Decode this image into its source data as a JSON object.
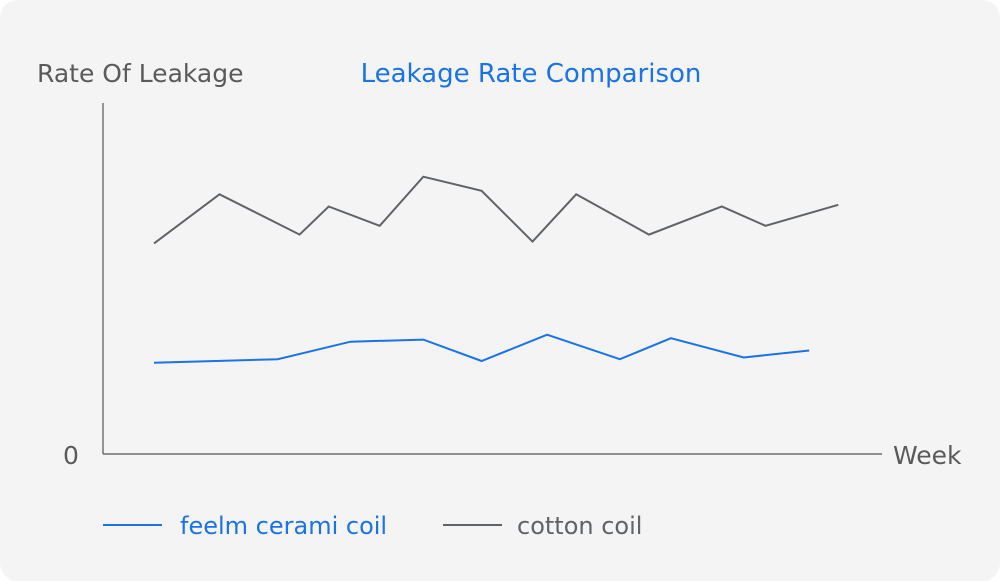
{
  "chart_data": {
    "type": "line",
    "title": "Leakage Rate Comparison",
    "xlabel": "Week",
    "ylabel": "Rate Of Leakage",
    "y_tick_labels": [
      "0"
    ],
    "ylim": [
      0,
      100
    ],
    "grid": false,
    "legend_position": "bottom-left",
    "series": [
      {
        "name": "feelm cerami coil",
        "color": "#1a73e8",
        "points": [
          {
            "x": 1,
            "y": 26
          },
          {
            "x": 2.7,
            "y": 27
          },
          {
            "x": 3.7,
            "y": 32
          },
          {
            "x": 4.7,
            "y": 32.6
          },
          {
            "x": 5.5,
            "y": 26.5
          },
          {
            "x": 6.4,
            "y": 34
          },
          {
            "x": 7.4,
            "y": 27
          },
          {
            "x": 8.1,
            "y": 33
          },
          {
            "x": 9.1,
            "y": 27.5
          },
          {
            "x": 10,
            "y": 29.5
          }
        ]
      },
      {
        "name": "cotton coil",
        "color": "#5f6368",
        "points": [
          {
            "x": 1,
            "y": 60
          },
          {
            "x": 1.9,
            "y": 74
          },
          {
            "x": 3,
            "y": 62.5
          },
          {
            "x": 3.4,
            "y": 70.5
          },
          {
            "x": 4.1,
            "y": 65
          },
          {
            "x": 4.7,
            "y": 79
          },
          {
            "x": 5.5,
            "y": 75
          },
          {
            "x": 6.2,
            "y": 60.5
          },
          {
            "x": 6.8,
            "y": 74
          },
          {
            "x": 7.8,
            "y": 62.5
          },
          {
            "x": 8.8,
            "y": 70.5
          },
          {
            "x": 9.4,
            "y": 65
          },
          {
            "x": 10.4,
            "y": 71
          }
        ]
      }
    ]
  }
}
